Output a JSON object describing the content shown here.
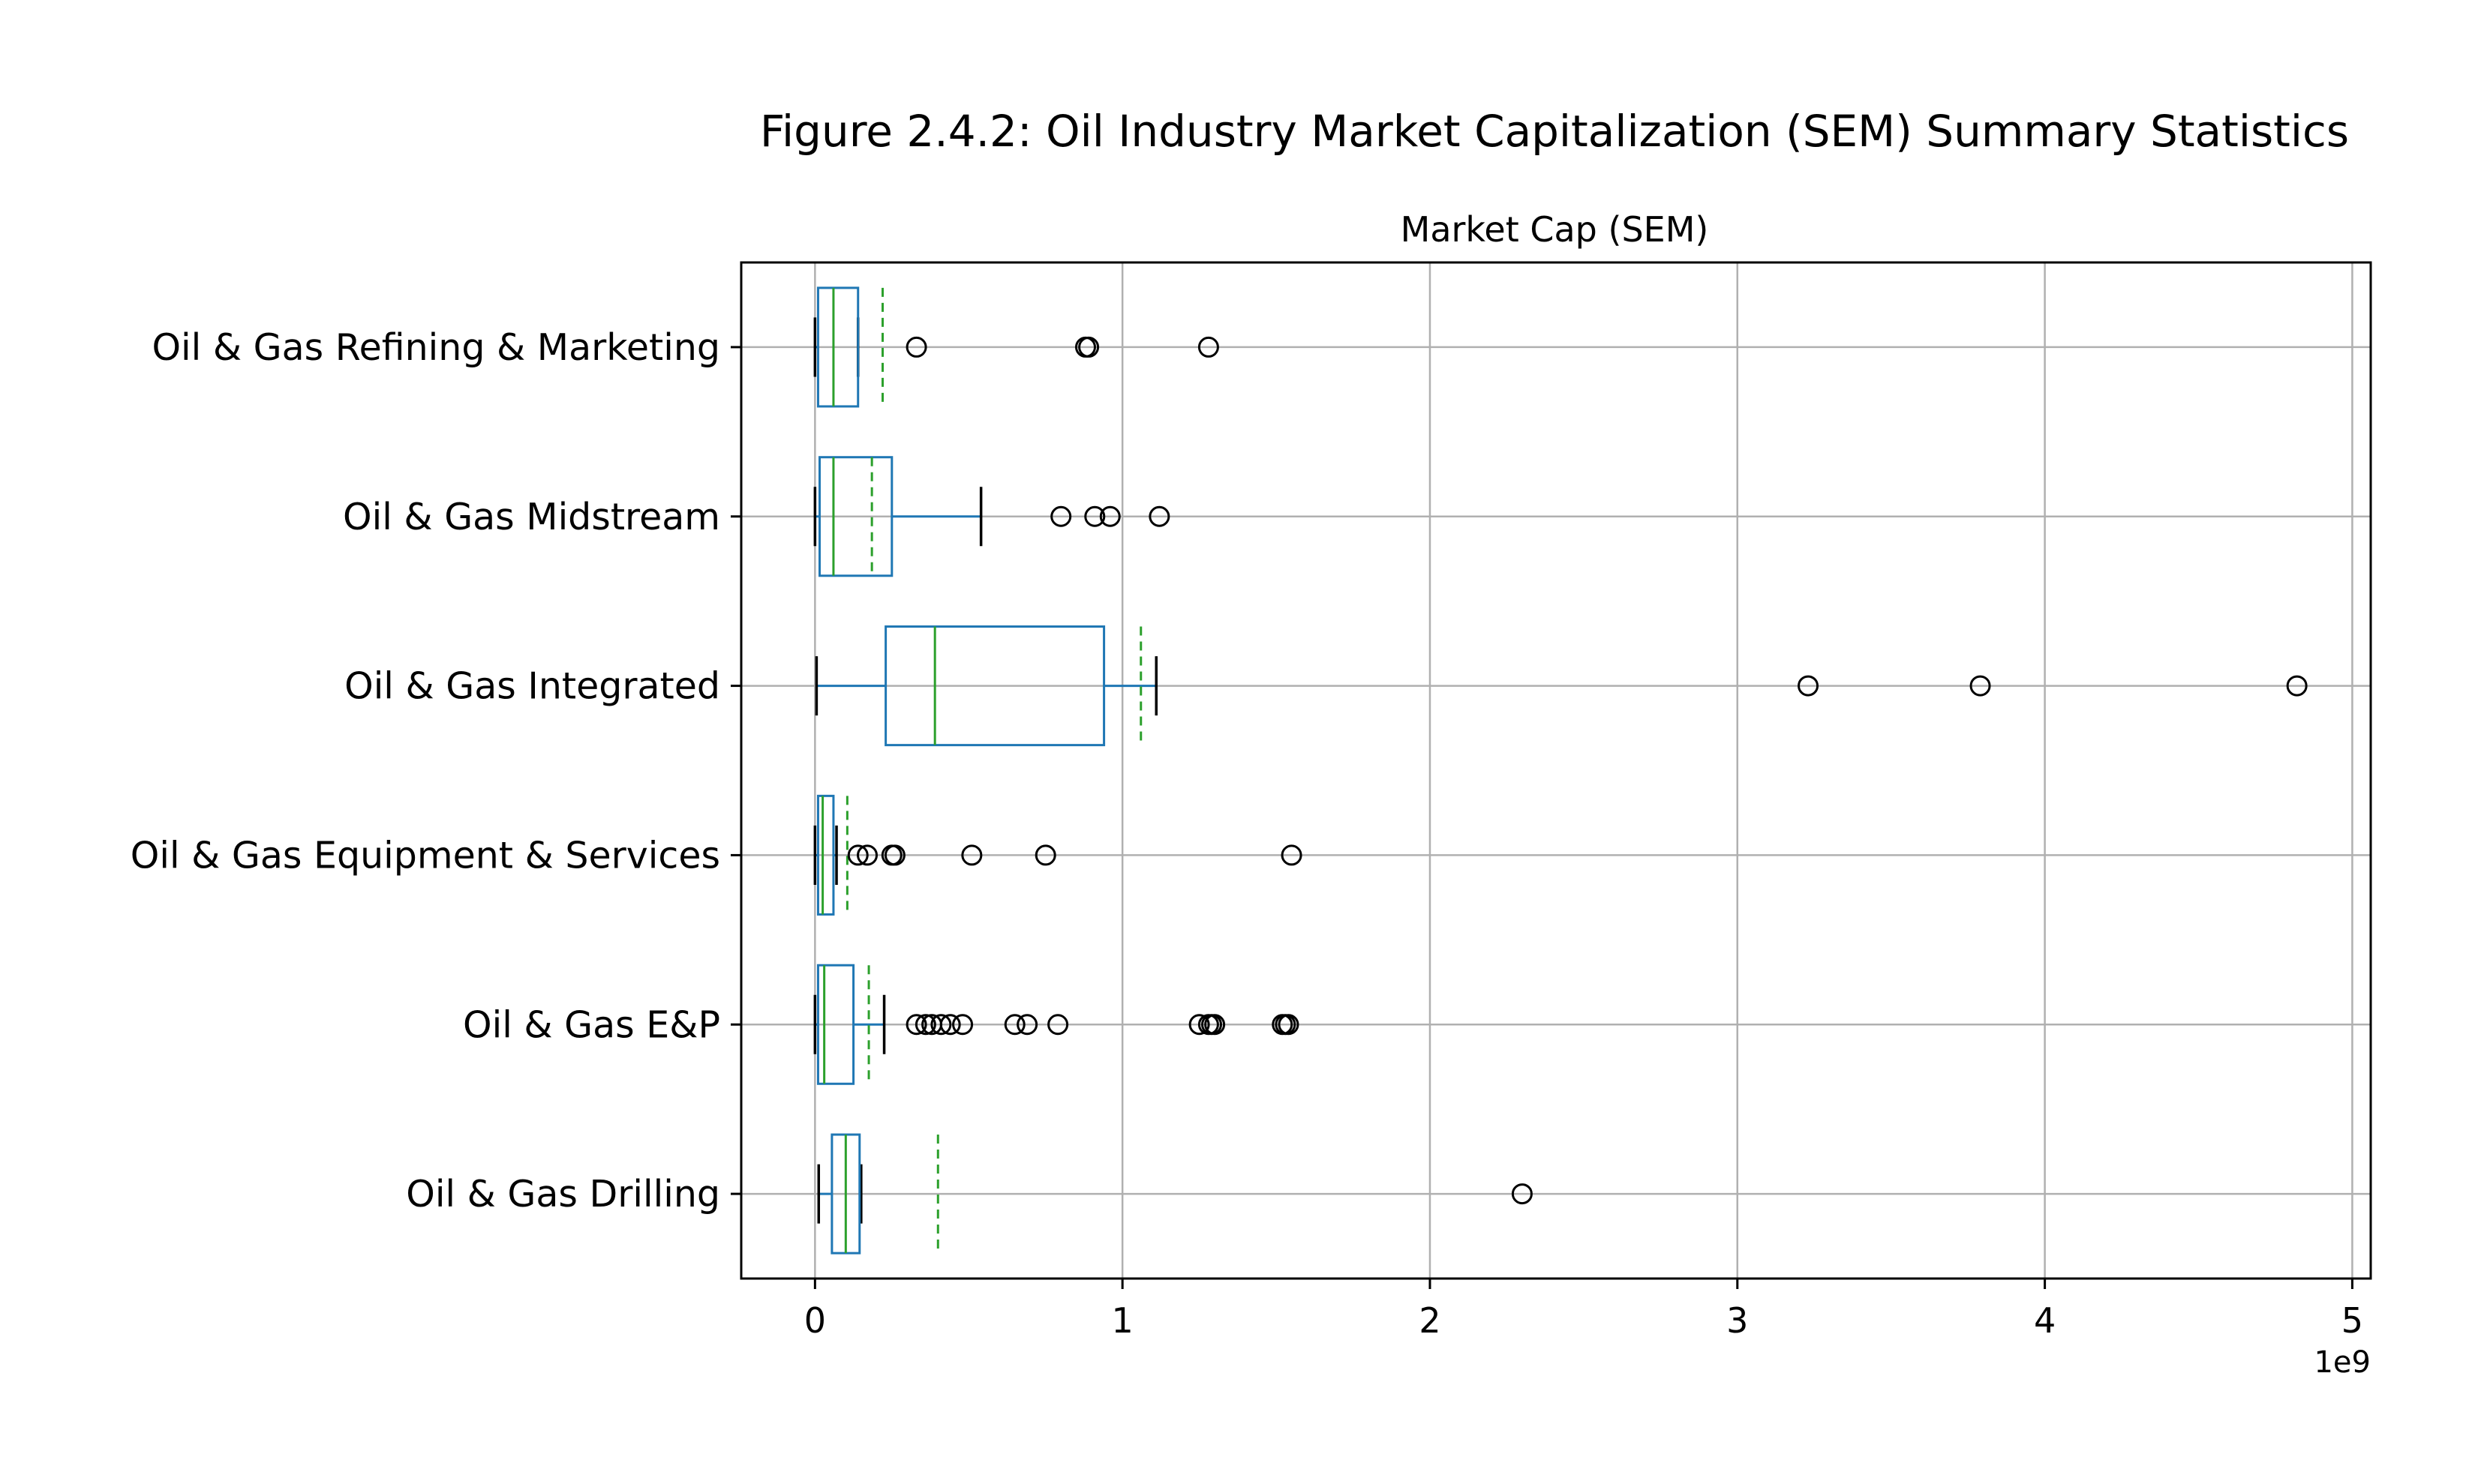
{
  "figure_title": "Figure 2.4.2: Oil Industry Market Capitalization (SEM) Summary Statistics",
  "chart_data": {
    "type": "boxplot",
    "orientation": "horizontal",
    "title": "Market Cap (SEM)",
    "xlabel": "",
    "ylabel": "",
    "x_offset_label": "1e9",
    "xlim": [
      -0.24,
      5.06
    ],
    "x_ticks": [
      0,
      1,
      2,
      3,
      4,
      5
    ],
    "x_tick_labels": [
      "0",
      "1",
      "2",
      "3",
      "4",
      "5"
    ],
    "grid": true,
    "legend": "none",
    "colors": {
      "box": "#1f77b4",
      "median": "#2ca02c",
      "mean": "#2ca02c",
      "cap": "#000000",
      "grid": "#b0b0b0",
      "flier": "#000000"
    },
    "categories": [
      "Oil & Gas Drilling",
      "Oil & Gas E&P",
      "Oil & Gas Equipment & Services",
      "Oil & Gas Integrated",
      "Oil & Gas Midstream",
      "Oil & Gas Refining & Marketing"
    ],
    "series": [
      {
        "category": "Oil & Gas Drilling",
        "whisker_low": 0.012,
        "q1": 0.055,
        "median": 0.1,
        "q3": 0.145,
        "whisker_high": 0.15,
        "mean": 0.4,
        "outliers": [
          2.3
        ]
      },
      {
        "category": "Oil & Gas E&P",
        "whisker_low": 0.0,
        "q1": 0.01,
        "median": 0.03,
        "q3": 0.125,
        "whisker_high": 0.225,
        "mean": 0.175,
        "outliers": [
          0.33,
          0.36,
          0.38,
          0.41,
          0.44,
          0.48,
          0.65,
          0.69,
          0.79,
          1.25,
          1.28,
          1.29,
          1.3,
          1.52,
          1.53,
          1.54
        ]
      },
      {
        "category": "Oil & Gas Equipment & Services",
        "whisker_low": 0.0,
        "q1": 0.01,
        "median": 0.025,
        "q3": 0.06,
        "whisker_high": 0.07,
        "mean": 0.105,
        "outliers": [
          0.14,
          0.17,
          0.25,
          0.26,
          0.51,
          0.75,
          1.55
        ]
      },
      {
        "category": "Oil & Gas Integrated",
        "whisker_low": 0.005,
        "q1": 0.23,
        "median": 0.39,
        "q3": 0.94,
        "whisker_high": 1.11,
        "mean": 1.06,
        "outliers": [
          3.23,
          3.79,
          4.82
        ]
      },
      {
        "category": "Oil & Gas Midstream",
        "whisker_low": 0.0,
        "q1": 0.015,
        "median": 0.06,
        "q3": 0.25,
        "whisker_high": 0.54,
        "mean": 0.185,
        "outliers": [
          0.8,
          0.91,
          0.96,
          1.12
        ]
      },
      {
        "category": "Oil & Gas Refining & Marketing",
        "whisker_low": 0.0,
        "q1": 0.01,
        "median": 0.06,
        "q3": 0.14,
        "whisker_high": 0.14,
        "mean": 0.22,
        "outliers": [
          0.33,
          0.88,
          0.89,
          1.28
        ]
      }
    ]
  }
}
